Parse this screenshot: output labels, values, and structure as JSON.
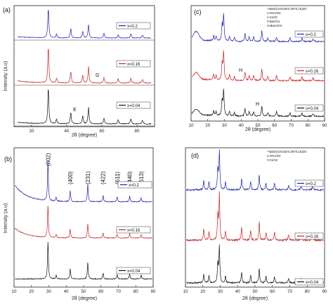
{
  "chart_data": [
    {
      "panel": "(a)",
      "type": "line",
      "xlabel": "2θ (degree)",
      "ylabel": "Intensity (a.u)",
      "xlim": [
        10,
        90
      ],
      "xticks": [
        20,
        40,
        60,
        80
      ],
      "series": [
        {
          "name": "x=0.2",
          "color": "#1f1fb4"
        },
        {
          "name": "x=0.16",
          "color": "#c42222"
        },
        {
          "name": "x=0.04",
          "color": "#111111"
        }
      ],
      "peaks": [
        29.5,
        34.2,
        42.3,
        49.1,
        52.4,
        61.2,
        69.3,
        76.5,
        83.1
      ],
      "heights": [
        1.0,
        0.12,
        0.32,
        0.22,
        0.45,
        0.16,
        0.12,
        0.14,
        0.1
      ],
      "annotations": [
        "G",
        "E"
      ]
    },
    {
      "panel": "(b)",
      "type": "line",
      "xlabel": "2θ (degree)",
      "ylabel": "Intensity (a.u)",
      "xlim": [
        10,
        90
      ],
      "xticks": [
        10,
        20,
        30,
        40,
        50,
        60,
        70,
        80,
        90
      ],
      "series": [
        {
          "name": "x=0.2",
          "color": "#1f1fb4"
        },
        {
          "name": "x=0.16",
          "color": "#c42222"
        },
        {
          "name": "x=0.04",
          "color": "#111111"
        }
      ],
      "peaks": [
        29.5,
        34.2,
        42.3,
        52.4,
        61.2,
        69.3,
        76.5,
        83.1
      ],
      "heights": [
        1.0,
        0.1,
        0.28,
        0.45,
        0.16,
        0.12,
        0.14,
        0.1
      ],
      "miller_indices": [
        "(002)",
        "(400)",
        "(231)",
        "(422)",
        "(611)",
        "(440)",
        "(613)"
      ]
    },
    {
      "panel": "(c)",
      "type": "line",
      "xlabel": "2θ (degree)",
      "ylabel": "",
      "xlim": [
        10,
        90
      ],
      "xticks": [
        10,
        20,
        30,
        40,
        50,
        60,
        70,
        80,
        90
      ],
      "series": [
        {
          "name": "x=0.2",
          "color": "#1f1fb4"
        },
        {
          "name": "x=0.16",
          "color": "#c42222"
        },
        {
          "name": "x=0.04",
          "color": "#111111"
        }
      ],
      "phase_key": [
        "*-BaSr(Ce0.5Zr0.35Y0.15)2O",
        "o-SrCeO3",
        "x-CeO2",
        "#-BaCO3",
        "H-BaCeO3"
      ],
      "annotations": [
        "H",
        "H"
      ]
    },
    {
      "panel": "(d)",
      "type": "line",
      "xlabel": "2θ (degree)",
      "ylabel": "",
      "xlim": [
        10,
        90
      ],
      "xticks": [
        10,
        20,
        30,
        40,
        50,
        60,
        70,
        80,
        90
      ],
      "series": [
        {
          "name": "x=0.2",
          "color": "#1f1fb4"
        },
        {
          "name": "x=0.16",
          "color": "#c42222"
        },
        {
          "name": "x=0.04",
          "color": "#111111"
        }
      ],
      "phase_key": [
        "*-BaSr(Ce0.5Zr0.35Y0.15)2O",
        "o-SrCeO3",
        "#-CeO2"
      ]
    }
  ]
}
